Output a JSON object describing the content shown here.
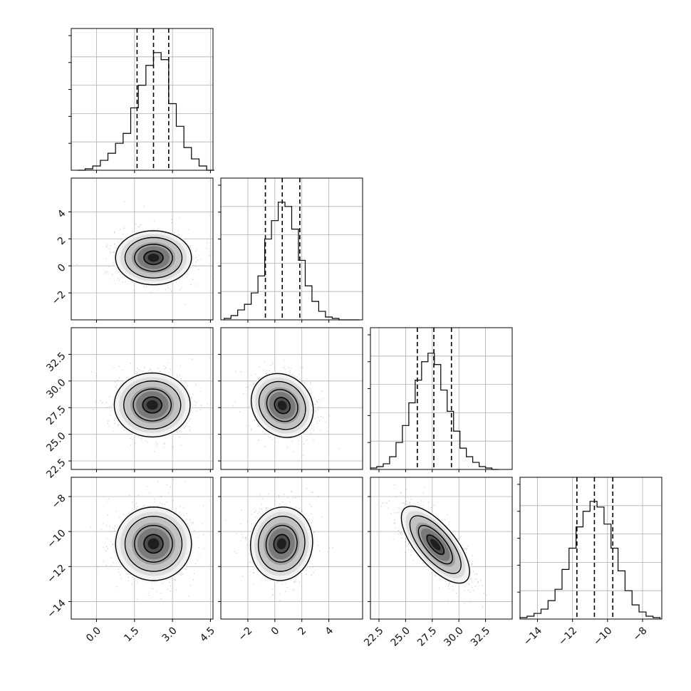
{
  "chart_data": {
    "type": "corner",
    "style": {
      "grid": true,
      "hist_color": "#000000",
      "density_colormap": "grayscale",
      "scatter_color": "#9a9a9a",
      "contour_color": "#000000",
      "quantile_line_style": "dashed",
      "grid_color": "#b0b0b0"
    },
    "params": [
      {
        "range": [
          -1.0,
          4.6
        ],
        "ticks": [
          0.0,
          1.5,
          3.0,
          4.5
        ],
        "tick_labels": [
          "0.0",
          "1.5",
          "3.0",
          "4.5"
        ],
        "quantiles": [
          1.6,
          2.25,
          2.85
        ],
        "hist_peak": 1.0,
        "hist": [
          {
            "x": -0.6,
            "y": 0.0
          },
          {
            "x": -0.3,
            "y": 0.01
          },
          {
            "x": 0.0,
            "y": 0.03
          },
          {
            "x": 0.3,
            "y": 0.07
          },
          {
            "x": 0.6,
            "y": 0.12
          },
          {
            "x": 0.9,
            "y": 0.19
          },
          {
            "x": 1.2,
            "y": 0.26
          },
          {
            "x": 1.5,
            "y": 0.44
          },
          {
            "x": 1.8,
            "y": 0.6
          },
          {
            "x": 2.1,
            "y": 0.74
          },
          {
            "x": 2.4,
            "y": 0.83
          },
          {
            "x": 2.7,
            "y": 0.78
          },
          {
            "x": 3.0,
            "y": 0.47
          },
          {
            "x": 3.3,
            "y": 0.31
          },
          {
            "x": 3.6,
            "y": 0.16
          },
          {
            "x": 3.9,
            "y": 0.08
          },
          {
            "x": 4.2,
            "y": 0.03
          },
          {
            "x": 4.5,
            "y": 0.0
          }
        ]
      },
      {
        "range": [
          -4.0,
          6.5
        ],
        "ticks": [
          -2,
          0,
          2,
          4
        ],
        "tick_labels": [
          "−2",
          "0",
          "2",
          "4"
        ],
        "quantiles": [
          -0.7,
          0.55,
          1.85
        ],
        "hist_peak": 1.0,
        "hist": [
          {
            "x": -3.5,
            "y": 0.01
          },
          {
            "x": -3.0,
            "y": 0.03
          },
          {
            "x": -2.5,
            "y": 0.07
          },
          {
            "x": -2.0,
            "y": 0.11
          },
          {
            "x": -1.5,
            "y": 0.19
          },
          {
            "x": -1.0,
            "y": 0.31
          },
          {
            "x": -0.5,
            "y": 0.57
          },
          {
            "x": 0.0,
            "y": 0.7
          },
          {
            "x": 0.5,
            "y": 0.83
          },
          {
            "x": 1.0,
            "y": 0.8
          },
          {
            "x": 1.5,
            "y": 0.64
          },
          {
            "x": 2.0,
            "y": 0.42
          },
          {
            "x": 2.5,
            "y": 0.24
          },
          {
            "x": 3.0,
            "y": 0.13
          },
          {
            "x": 3.5,
            "y": 0.06
          },
          {
            "x": 4.0,
            "y": 0.02
          },
          {
            "x": 4.5,
            "y": 0.01
          },
          {
            "x": 5.0,
            "y": 0.0
          },
          {
            "x": 5.5,
            "y": 0.0
          },
          {
            "x": 6.0,
            "y": 0.0
          }
        ]
      },
      {
        "range": [
          21.7,
          35.0
        ],
        "ticks": [
          22.5,
          25.0,
          27.5,
          30.0,
          32.5
        ],
        "tick_labels": [
          "22.5",
          "25.0",
          "27.5",
          "30.0",
          "32.5"
        ],
        "quantiles": [
          26.1,
          27.65,
          29.3
        ],
        "hist_peak": 1.0,
        "hist": [
          {
            "x": 22.0,
            "y": 0.01
          },
          {
            "x": 22.6,
            "y": 0.02
          },
          {
            "x": 23.2,
            "y": 0.04
          },
          {
            "x": 23.8,
            "y": 0.09
          },
          {
            "x": 24.4,
            "y": 0.19
          },
          {
            "x": 25.0,
            "y": 0.31
          },
          {
            "x": 25.6,
            "y": 0.47
          },
          {
            "x": 26.2,
            "y": 0.63
          },
          {
            "x": 26.8,
            "y": 0.76
          },
          {
            "x": 27.4,
            "y": 0.82
          },
          {
            "x": 28.0,
            "y": 0.74
          },
          {
            "x": 28.6,
            "y": 0.56
          },
          {
            "x": 29.2,
            "y": 0.41
          },
          {
            "x": 29.8,
            "y": 0.27
          },
          {
            "x": 30.4,
            "y": 0.15
          },
          {
            "x": 31.0,
            "y": 0.09
          },
          {
            "x": 31.6,
            "y": 0.05
          },
          {
            "x": 32.2,
            "y": 0.02
          },
          {
            "x": 32.8,
            "y": 0.01
          },
          {
            "x": 33.4,
            "y": 0.0
          }
        ]
      },
      {
        "range": [
          -15.0,
          -6.9
        ],
        "ticks": [
          -14,
          -12,
          -10,
          -8
        ],
        "tick_labels": [
          "−14",
          "−12",
          "−10",
          "−8"
        ],
        "quantiles": [
          -11.75,
          -10.75,
          -9.7
        ],
        "hist_peak": 1.0,
        "hist": [
          {
            "x": -14.8,
            "y": 0.01
          },
          {
            "x": -14.4,
            "y": 0.02
          },
          {
            "x": -14.0,
            "y": 0.04
          },
          {
            "x": -13.6,
            "y": 0.07
          },
          {
            "x": -13.2,
            "y": 0.13
          },
          {
            "x": -12.8,
            "y": 0.21
          },
          {
            "x": -12.4,
            "y": 0.35
          },
          {
            "x": -12.0,
            "y": 0.5
          },
          {
            "x": -11.6,
            "y": 0.65
          },
          {
            "x": -11.2,
            "y": 0.76
          },
          {
            "x": -10.8,
            "y": 0.83
          },
          {
            "x": -10.4,
            "y": 0.79
          },
          {
            "x": -10.0,
            "y": 0.67
          },
          {
            "x": -9.6,
            "y": 0.5
          },
          {
            "x": -9.2,
            "y": 0.34
          },
          {
            "x": -8.8,
            "y": 0.2
          },
          {
            "x": -8.4,
            "y": 0.1
          },
          {
            "x": -8.0,
            "y": 0.05
          },
          {
            "x": -7.6,
            "y": 0.02
          },
          {
            "x": -7.2,
            "y": 0.01
          }
        ]
      }
    ],
    "pairs": [
      {
        "xi": 0,
        "yi": 1,
        "center": [
          2.25,
          0.6
        ],
        "sd": [
          0.75,
          1.0
        ],
        "corr": 0.0
      },
      {
        "xi": 0,
        "yi": 2,
        "center": [
          2.2,
          27.75
        ],
        "sd": [
          0.75,
          1.5
        ],
        "corr": 0.0
      },
      {
        "xi": 1,
        "yi": 2,
        "center": [
          0.55,
          27.7
        ],
        "sd": [
          1.15,
          1.5
        ],
        "corr": -0.15
      },
      {
        "xi": 0,
        "yi": 3,
        "center": [
          2.25,
          -10.7
        ],
        "sd": [
          0.75,
          1.05
        ],
        "corr": 0.0
      },
      {
        "xi": 1,
        "yi": 3,
        "center": [
          0.5,
          -10.7
        ],
        "sd": [
          1.15,
          1.05
        ],
        "corr": 0.05
      },
      {
        "xi": 2,
        "yi": 3,
        "center": [
          27.8,
          -10.75
        ],
        "sd": [
          1.6,
          1.1
        ],
        "corr": -0.7
      }
    ]
  }
}
